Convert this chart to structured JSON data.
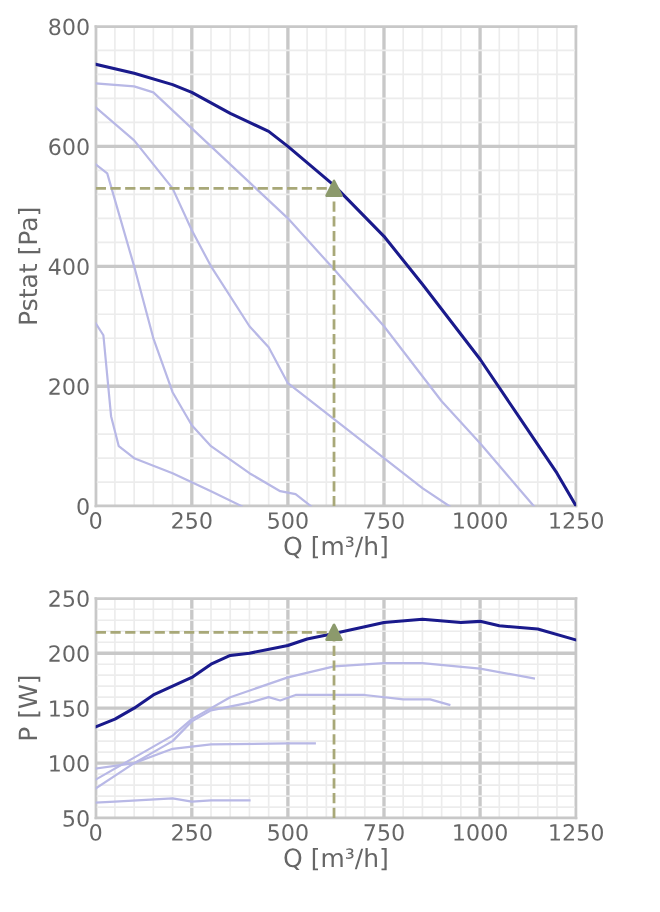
{
  "chart_data": [
    {
      "type": "line",
      "xlabel": "Q [m³/h]",
      "ylabel": "Pstat [Pa]",
      "xlim": [
        0,
        1250
      ],
      "ylim": [
        0,
        800
      ],
      "xticks": [
        0,
        250,
        500,
        750,
        1000,
        1250
      ],
      "yticks": [
        0,
        200,
        400,
        600,
        800
      ],
      "grid": true,
      "legend": false,
      "marker": "none",
      "line_style": "solid",
      "series": [
        {
          "color": "#b8b8e6",
          "x": [
            0,
            100,
            150,
            250,
            400,
            500,
            620,
            750,
            900,
            1000,
            1100,
            1140
          ],
          "values": [
            705,
            700,
            690,
            630,
            540,
            480,
            395,
            300,
            175,
            105,
            30,
            0
          ]
        },
        {
          "color": "#b8b8e6",
          "x": [
            0,
            100,
            200,
            250,
            300,
            400,
            450,
            500,
            620,
            750,
            850,
            920
          ],
          "values": [
            665,
            610,
            530,
            460,
            400,
            300,
            265,
            205,
            145,
            80,
            30,
            0
          ]
        },
        {
          "color": "#b8b8e6",
          "x": [
            0,
            30,
            100,
            150,
            200,
            250,
            300,
            400,
            480,
            520,
            560
          ],
          "values": [
            570,
            555,
            400,
            280,
            190,
            135,
            100,
            55,
            25,
            20,
            0
          ]
        },
        {
          "color": "#b8b8e6",
          "x": [
            0,
            20,
            40,
            60,
            100,
            200,
            300,
            380
          ],
          "values": [
            305,
            285,
            150,
            100,
            80,
            55,
            25,
            0
          ]
        },
        {
          "color": "#1a1a8c",
          "x": [
            0,
            100,
            200,
            250,
            350,
            400,
            450,
            500,
            620,
            750,
            850,
            1000,
            1100,
            1200,
            1250
          ],
          "values": [
            737,
            722,
            703,
            690,
            655,
            640,
            625,
            600,
            535,
            450,
            370,
            245,
            150,
            55,
            0
          ]
        },
        {
          "type": "scatter",
          "marker": "triangle",
          "color": "#8c9a6c",
          "x": [
            620
          ],
          "values": [
            530
          ]
        }
      ],
      "ref_lines": [
        {
          "axis": "x",
          "value": 620,
          "color": "#a8a878",
          "line_style": "dashed"
        },
        {
          "axis": "y",
          "value": 530,
          "color": "#a8a878",
          "line_style": "dashed"
        }
      ]
    },
    {
      "type": "line",
      "xlabel": "Q [m³/h]",
      "ylabel": "P [W]",
      "xlim": [
        0,
        1250
      ],
      "ylim": [
        50,
        250
      ],
      "xticks": [
        0,
        250,
        500,
        750,
        1000,
        1250
      ],
      "yticks": [
        50,
        100,
        150,
        200,
        250
      ],
      "grid": true,
      "legend": false,
      "marker": "none",
      "line_style": "solid",
      "series": [
        {
          "color": "#b8b8e6",
          "x": [
            0,
            100,
            200,
            250,
            350,
            500,
            620,
            750,
            850,
            1000,
            1140
          ],
          "values": [
            85,
            105,
            125,
            140,
            160,
            178,
            188,
            191,
            191,
            186,
            177
          ]
        },
        {
          "color": "#b8b8e6",
          "x": [
            0,
            100,
            200,
            250,
            300,
            400,
            450,
            480,
            520,
            700,
            800,
            870,
            920
          ],
          "values": [
            77,
            100,
            120,
            138,
            148,
            155,
            160,
            157,
            162,
            162,
            158,
            158,
            153
          ]
        },
        {
          "color": "#b8b8e6",
          "x": [
            0,
            100,
            200,
            300,
            500,
            570
          ],
          "values": [
            95,
            100,
            113,
            117,
            118,
            118
          ]
        },
        {
          "color": "#b8b8e6",
          "x": [
            0,
            50,
            200,
            250,
            300,
            400
          ],
          "values": [
            64,
            65,
            68,
            65,
            66,
            66
          ]
        },
        {
          "color": "#1a1a8c",
          "x": [
            0,
            50,
            100,
            150,
            250,
            300,
            350,
            400,
            500,
            550,
            620,
            700,
            750,
            850,
            950,
            1000,
            1050,
            1150,
            1250
          ],
          "values": [
            133,
            140,
            150,
            162,
            178,
            190,
            198,
            200,
            207,
            213,
            218,
            224,
            228,
            231,
            228,
            229,
            225,
            222,
            212
          ]
        },
        {
          "type": "scatter",
          "marker": "triangle",
          "color": "#8c9a6c",
          "x": [
            620
          ],
          "values": [
            219
          ]
        }
      ],
      "ref_lines": [
        {
          "axis": "x",
          "value": 620,
          "color": "#a8a878",
          "line_style": "dashed"
        },
        {
          "axis": "y",
          "value": 219,
          "color": "#a8a878",
          "line_style": "dashed"
        }
      ]
    }
  ]
}
